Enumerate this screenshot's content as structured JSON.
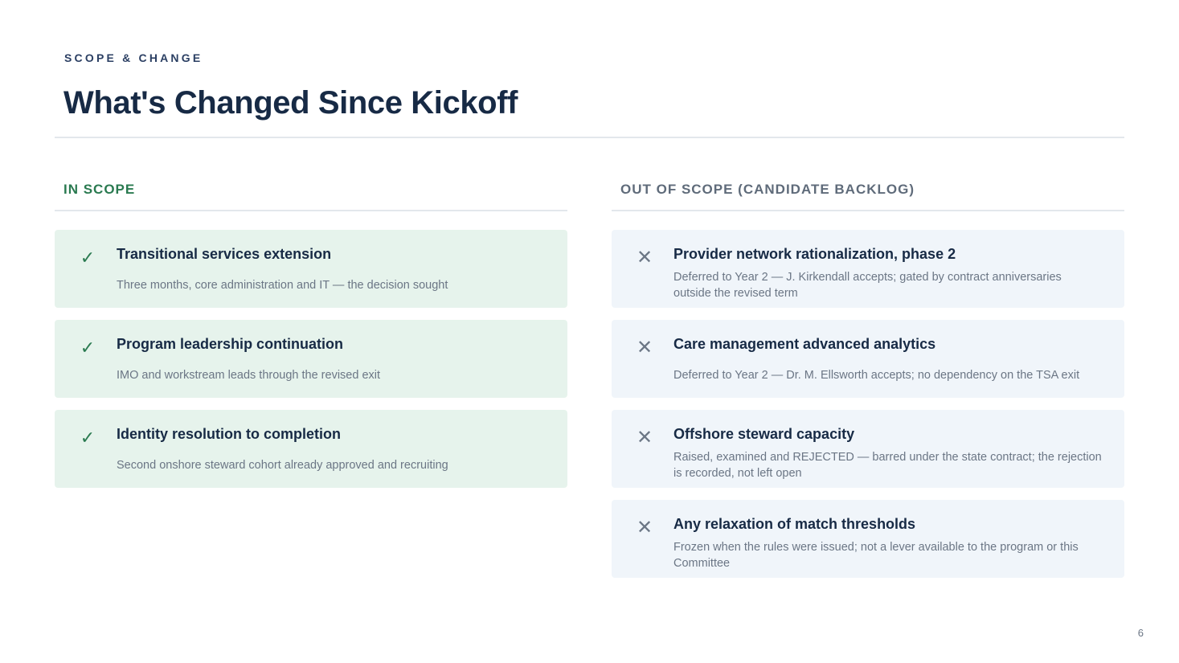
{
  "header": {
    "eyebrow": "SCOPE & CHANGE",
    "title": "What's Changed Since Kickoff"
  },
  "in_scope": {
    "heading": "IN SCOPE",
    "icon": "check-icon",
    "icon_glyph": "✓",
    "accent_color": "#2a7a50",
    "items": [
      {
        "title": "Transitional services extension",
        "description": "Three months, core administration and IT — the decision sought"
      },
      {
        "title": "Program leadership continuation",
        "description": "IMO and workstream leads through the revised exit"
      },
      {
        "title": "Identity resolution to completion",
        "description": "Second onshore steward cohort already approved and recruiting"
      }
    ]
  },
  "out_of_scope": {
    "heading": "OUT OF SCOPE (CANDIDATE BACKLOG)",
    "icon": "x-icon",
    "icon_glyph": "✕",
    "accent_color": "#6b7685",
    "items": [
      {
        "title": "Provider network rationalization, phase 2",
        "description": "Deferred to Year 2 — J. Kirkendall accepts; gated by contract anniversaries outside the revised term"
      },
      {
        "title": "Care management advanced analytics",
        "description": "Deferred to Year 2 — Dr. M. Ellsworth accepts; no dependency on the TSA exit"
      },
      {
        "title": "Offshore steward capacity",
        "description": "Raised, examined and REJECTED — barred under the state contract; the rejection is recorded, not left open"
      },
      {
        "title": "Any relaxation of match thresholds",
        "description": "Frozen when the rules were issued; not a lever available to the program or this Committee"
      }
    ]
  },
  "footer": {
    "page_number": "6"
  }
}
